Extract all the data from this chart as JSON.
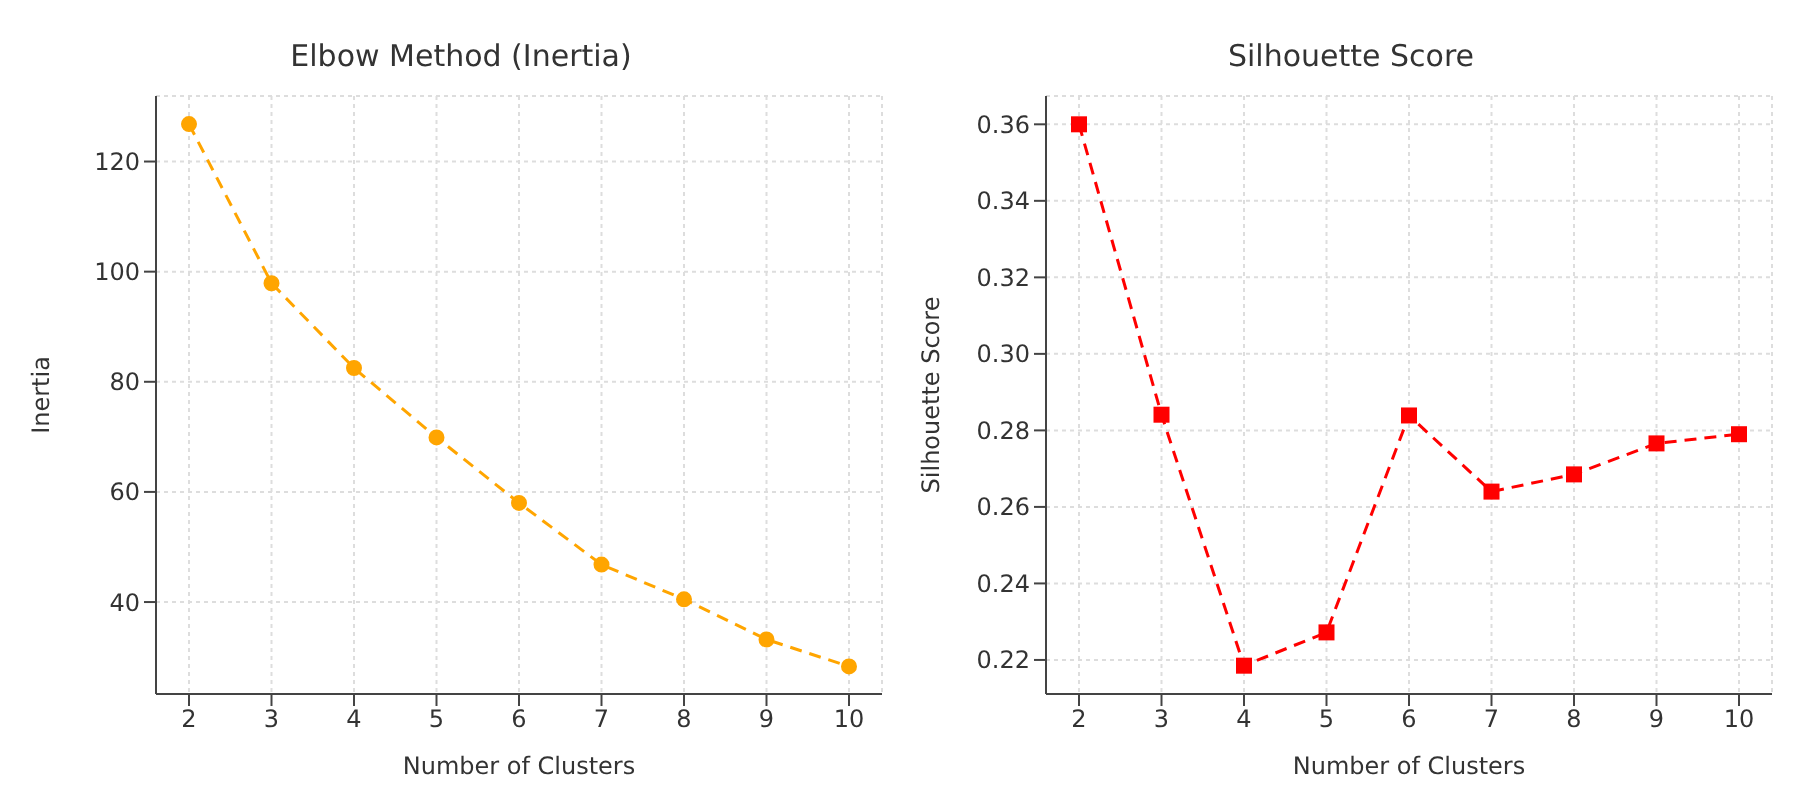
{
  "chart_data": [
    {
      "type": "line",
      "title": "Elbow Method (Inertia)",
      "xlabel": "Number of Clusters",
      "ylabel": "Inertia",
      "x": [
        2,
        3,
        4,
        5,
        6,
        7,
        8,
        9,
        10
      ],
      "xlim": [
        1.6,
        10.4
      ],
      "xticks": [
        2,
        3,
        4,
        5,
        6,
        7,
        8,
        9,
        10
      ],
      "ylim": [
        23.3,
        131.9
      ],
      "yticks": [
        40,
        60,
        80,
        100,
        120
      ],
      "grid": true,
      "marker": "circle",
      "line_style": "dashed",
      "series": [
        {
          "color": "#ffa500",
          "values": [
            126.8,
            97.9,
            82.5,
            69.9,
            58.0,
            46.8,
            40.5,
            33.2,
            28.3
          ]
        }
      ]
    },
    {
      "type": "line",
      "title": "Silhouette Score",
      "xlabel": "Number of Clusters",
      "ylabel": "Silhouette Score",
      "x": [
        2,
        3,
        4,
        5,
        6,
        7,
        8,
        9,
        10
      ],
      "xlim": [
        1.6,
        10.4
      ],
      "xticks": [
        2,
        3,
        4,
        5,
        6,
        7,
        8,
        9,
        10
      ],
      "ylim": [
        0.2111,
        0.3674
      ],
      "yticks": [
        {
          "value": 0.22,
          "label": "0.22"
        },
        {
          "value": 0.24,
          "label": "0.24"
        },
        {
          "value": 0.26,
          "label": "0.26"
        },
        {
          "value": 0.28,
          "label": "0.28"
        },
        {
          "value": 0.3,
          "label": "0.30"
        },
        {
          "value": 0.32,
          "label": "0.32"
        },
        {
          "value": 0.34,
          "label": "0.34"
        },
        {
          "value": 0.36,
          "label": "0.36"
        }
      ],
      "grid": true,
      "marker": "square",
      "line_style": "dashed",
      "series": [
        {
          "color": "#ff0000",
          "values": [
            0.36,
            0.2841,
            0.2185,
            0.2272,
            0.2839,
            0.264,
            0.2685,
            0.2766,
            0.279
          ]
        }
      ]
    }
  ]
}
